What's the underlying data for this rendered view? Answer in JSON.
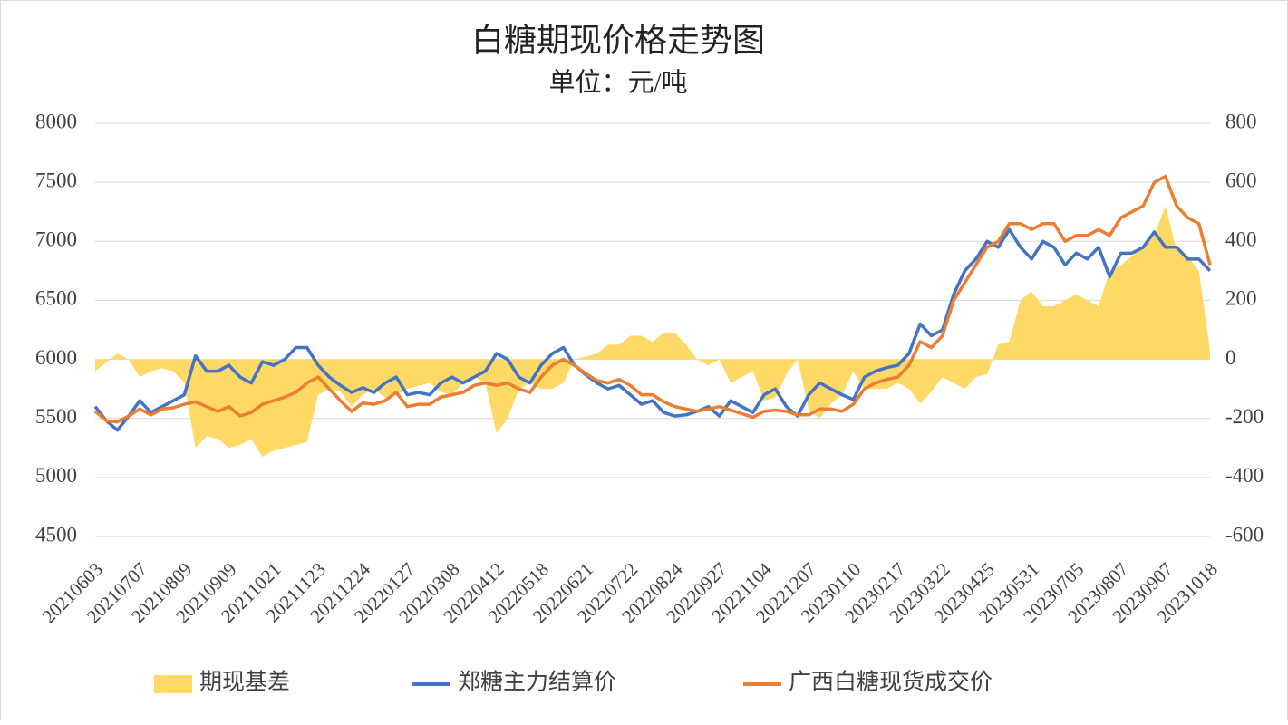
{
  "chart_data": {
    "type": "line",
    "title": "白糖期现价格走势图",
    "subtitle": "单位：元/吨",
    "categories": [
      "20210603",
      null,
      null,
      null,
      "20210707",
      null,
      null,
      null,
      "20210809",
      null,
      null,
      null,
      "20210909",
      null,
      null,
      null,
      "20211021",
      null,
      null,
      null,
      "20211123",
      null,
      null,
      null,
      "20211224",
      null,
      null,
      null,
      "20220127",
      null,
      null,
      null,
      "20220308",
      null,
      null,
      null,
      "20220412",
      null,
      null,
      null,
      "20220518",
      null,
      null,
      null,
      "20220621",
      null,
      null,
      null,
      "20220722",
      null,
      null,
      null,
      "20220824",
      null,
      null,
      null,
      "20220927",
      null,
      null,
      null,
      "20221104",
      null,
      null,
      null,
      "20221207",
      null,
      null,
      null,
      "20230110",
      null,
      null,
      null,
      "20230217",
      null,
      null,
      null,
      "20230322",
      null,
      null,
      null,
      "20230425",
      null,
      null,
      null,
      "20230531",
      null,
      null,
      null,
      "20230705",
      null,
      null,
      null,
      "20230807",
      null,
      null,
      null,
      "20230907",
      null,
      null,
      null,
      "20231018"
    ],
    "series": [
      {
        "name": "期现基差",
        "type": "area",
        "axis": "y2",
        "color": "#ffd966",
        "values": [
          -40,
          -10,
          20,
          0,
          -60,
          -40,
          -30,
          -40,
          -80,
          -300,
          -260,
          -270,
          -300,
          -290,
          -270,
          -330,
          -310,
          -300,
          -290,
          -280,
          -120,
          -100,
          -110,
          -160,
          -120,
          -100,
          -130,
          -120,
          -100,
          -90,
          -80,
          -110,
          -120,
          -80,
          -60,
          -80,
          -250,
          -200,
          -100,
          -80,
          -100,
          -100,
          -80,
          0,
          10,
          20,
          50,
          50,
          80,
          80,
          60,
          90,
          90,
          50,
          0,
          -20,
          0,
          -80,
          -60,
          -40,
          -140,
          -130,
          -50,
          0,
          -170,
          -200,
          -150,
          -120,
          -40,
          -100,
          -100,
          -100,
          -80,
          -100,
          -150,
          -110,
          -60,
          -80,
          -100,
          -60,
          -50,
          50,
          60,
          200,
          230,
          180,
          180,
          200,
          220,
          200,
          180,
          300,
          320,
          350,
          380,
          420,
          520,
          370,
          350,
          300,
          30
        ]
      },
      {
        "name": "郑糖主力结算价",
        "type": "line",
        "color": "#4472c4",
        "values": [
          5600,
          5480,
          5400,
          5520,
          5650,
          5550,
          5600,
          5650,
          5700,
          6030,
          5900,
          5900,
          5950,
          5850,
          5800,
          5980,
          5950,
          6000,
          6100,
          6100,
          5950,
          5850,
          5780,
          5720,
          5760,
          5720,
          5800,
          5850,
          5700,
          5720,
          5700,
          5800,
          5850,
          5800,
          5850,
          5900,
          6050,
          6000,
          5850,
          5800,
          5950,
          6050,
          6100,
          5950,
          5870,
          5800,
          5750,
          5780,
          5700,
          5620,
          5650,
          5550,
          5520,
          5530,
          5560,
          5600,
          5520,
          5650,
          5600,
          5550,
          5700,
          5750,
          5600,
          5520,
          5700,
          5800,
          5750,
          5700,
          5660,
          5850,
          5900,
          5930,
          5950,
          6050,
          6300,
          6200,
          6250,
          6550,
          6750,
          6850,
          7000,
          6950,
          7100,
          6950,
          6850,
          7000,
          6950,
          6800,
          6900,
          6850,
          6950,
          6700,
          6900,
          6900,
          6950,
          7080,
          6950,
          6950,
          6850,
          6850,
          6750
        ]
      },
      {
        "name": "广西白糖现货成交价",
        "type": "line",
        "color": "#ed7d31",
        "values": [
          5560,
          5480,
          5470,
          5520,
          5580,
          5530,
          5580,
          5590,
          5620,
          5640,
          5600,
          5560,
          5600,
          5520,
          5550,
          5620,
          5650,
          5680,
          5720,
          5800,
          5850,
          5750,
          5650,
          5560,
          5630,
          5620,
          5650,
          5720,
          5600,
          5620,
          5620,
          5680,
          5700,
          5720,
          5780,
          5800,
          5780,
          5800,
          5750,
          5720,
          5850,
          5950,
          6000,
          5950,
          5880,
          5820,
          5800,
          5830,
          5780,
          5700,
          5700,
          5640,
          5600,
          5580,
          5560,
          5580,
          5600,
          5570,
          5540,
          5510,
          5560,
          5570,
          5560,
          5530,
          5530,
          5580,
          5580,
          5560,
          5620,
          5750,
          5800,
          5830,
          5850,
          5950,
          6150,
          6100,
          6200,
          6500,
          6650,
          6800,
          6950,
          7000,
          7150,
          7150,
          7100,
          7150,
          7150,
          7000,
          7050,
          7050,
          7100,
          7050,
          7200,
          7250,
          7300,
          7500,
          7550,
          7300,
          7200,
          7150,
          6800
        ]
      }
    ],
    "ylim": [
      4500,
      8000
    ],
    "yticks": [
      4500,
      5000,
      5500,
      6000,
      6500,
      7000,
      7500,
      8000
    ],
    "y2lim": [
      -600,
      800
    ],
    "y2ticks": [
      -600,
      -400,
      -200,
      0,
      200,
      400,
      600,
      800
    ],
    "grid": true,
    "legend": "bottom"
  }
}
